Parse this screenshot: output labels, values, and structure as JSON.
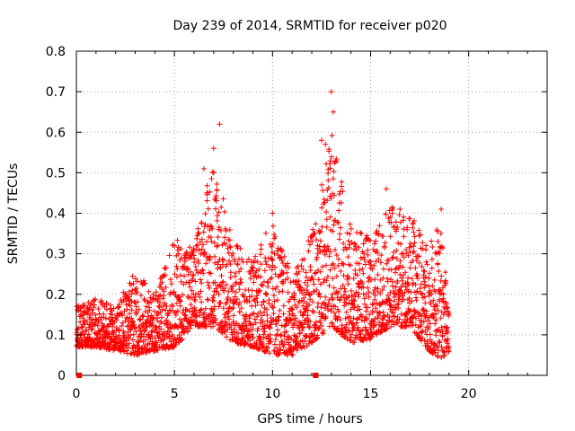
{
  "chart_data": {
    "type": "scatter",
    "title": "Day 239 of 2014, SRMTID for receiver p020",
    "xlabel": "GPS time / hours",
    "ylabel": "SRMTID / TECUs",
    "xlim": [
      0,
      24
    ],
    "ylim": [
      0,
      0.8
    ],
    "xticks": [
      "0",
      "5",
      "10",
      "15",
      "20"
    ],
    "xtick_values": [
      0,
      5,
      10,
      15,
      20
    ],
    "yticks": [
      "0",
      "0.1",
      "0.2",
      "0.3",
      "0.4",
      "0.5",
      "0.6",
      "0.7",
      "0.8"
    ],
    "ytick_values": [
      0,
      0.1,
      0.2,
      0.3,
      0.4,
      0.5,
      0.6,
      0.7,
      0.8
    ],
    "grid": true,
    "marker": "+",
    "color": "#ff0000",
    "gap_markers_x": [
      0.15,
      12.2
    ],
    "series": [
      {
        "name": "SRMTID",
        "envelope": [
          {
            "x": 0.0,
            "low": 0.07,
            "high": 0.17
          },
          {
            "x": 1.0,
            "low": 0.07,
            "high": 0.19
          },
          {
            "x": 2.0,
            "low": 0.06,
            "high": 0.17
          },
          {
            "x": 3.0,
            "low": 0.05,
            "high": 0.26
          },
          {
            "x": 4.0,
            "low": 0.06,
            "high": 0.2
          },
          {
            "x": 5.0,
            "low": 0.07,
            "high": 0.34
          },
          {
            "x": 6.0,
            "low": 0.12,
            "high": 0.32
          },
          {
            "x": 7.0,
            "low": 0.12,
            "high": 0.55
          },
          {
            "x": 8.0,
            "low": 0.08,
            "high": 0.33
          },
          {
            "x": 9.0,
            "low": 0.07,
            "high": 0.3
          },
          {
            "x": 10.0,
            "low": 0.05,
            "high": 0.38
          },
          {
            "x": 11.0,
            "low": 0.05,
            "high": 0.25
          },
          {
            "x": 12.0,
            "low": 0.08,
            "high": 0.35
          },
          {
            "x": 13.0,
            "low": 0.12,
            "high": 0.6
          },
          {
            "x": 14.0,
            "low": 0.08,
            "high": 0.37
          },
          {
            "x": 15.0,
            "low": 0.09,
            "high": 0.34
          },
          {
            "x": 16.0,
            "low": 0.12,
            "high": 0.42
          },
          {
            "x": 17.0,
            "low": 0.12,
            "high": 0.4
          },
          {
            "x": 18.0,
            "low": 0.06,
            "high": 0.32
          },
          {
            "x": 18.6,
            "low": 0.04,
            "high": 0.4
          },
          {
            "x": 19.0,
            "low": 0.06,
            "high": 0.15
          }
        ],
        "peaks": [
          {
            "x": 6.5,
            "y": 0.51
          },
          {
            "x": 7.0,
            "y": 0.56
          },
          {
            "x": 7.3,
            "y": 0.62
          },
          {
            "x": 7.0,
            "y": 0.5
          },
          {
            "x": 10.0,
            "y": 0.4
          },
          {
            "x": 12.5,
            "y": 0.58
          },
          {
            "x": 12.7,
            "y": 0.57
          },
          {
            "x": 13.0,
            "y": 0.7
          },
          {
            "x": 13.1,
            "y": 0.65
          },
          {
            "x": 15.8,
            "y": 0.46
          },
          {
            "x": 16.5,
            "y": 0.41
          },
          {
            "x": 18.6,
            "y": 0.41
          }
        ],
        "x_range": [
          0.0,
          19.0
        ],
        "point_count": 2600
      }
    ]
  }
}
